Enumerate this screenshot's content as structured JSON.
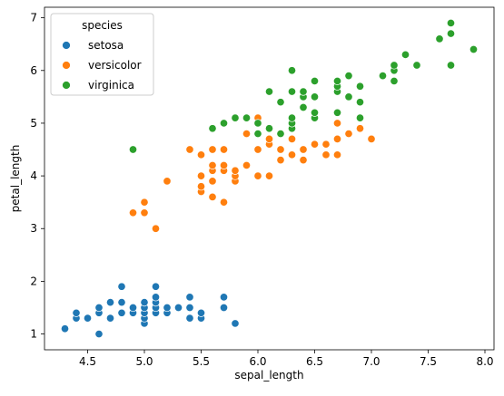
{
  "chart_data": {
    "type": "scatter",
    "title": "",
    "xlabel": "sepal_length",
    "ylabel": "petal_length",
    "xlim": [
      4.12,
      8.08
    ],
    "ylim": [
      0.7,
      7.2
    ],
    "x_ticks": [
      4.5,
      5.0,
      5.5,
      6.0,
      6.5,
      7.0,
      7.5,
      8.0
    ],
    "x_tick_labels": [
      "4.5",
      "5.0",
      "5.5",
      "6.0",
      "6.5",
      "7.0",
      "7.5",
      "8.0"
    ],
    "y_ticks": [
      1,
      2,
      3,
      4,
      5,
      6,
      7
    ],
    "y_tick_labels": [
      "1",
      "2",
      "3",
      "4",
      "5",
      "6",
      "7"
    ],
    "grid": false,
    "legend": {
      "title": "species",
      "placement": "top-left"
    },
    "series": [
      {
        "name": "setosa",
        "color": "#1f77b4",
        "points": [
          [
            4.3,
            1.1
          ],
          [
            4.4,
            1.3
          ],
          [
            4.4,
            1.4
          ],
          [
            4.5,
            1.3
          ],
          [
            4.6,
            1.0
          ],
          [
            4.6,
            1.4
          ],
          [
            4.6,
            1.5
          ],
          [
            4.7,
            1.3
          ],
          [
            4.7,
            1.6
          ],
          [
            4.8,
            1.4
          ],
          [
            4.8,
            1.6
          ],
          [
            4.8,
            1.9
          ],
          [
            4.9,
            1.4
          ],
          [
            4.9,
            1.5
          ],
          [
            5.0,
            1.2
          ],
          [
            5.0,
            1.3
          ],
          [
            5.0,
            1.4
          ],
          [
            5.0,
            1.5
          ],
          [
            5.0,
            1.6
          ],
          [
            5.1,
            1.4
          ],
          [
            5.1,
            1.5
          ],
          [
            5.1,
            1.6
          ],
          [
            5.1,
            1.7
          ],
          [
            5.1,
            1.9
          ],
          [
            5.2,
            1.4
          ],
          [
            5.2,
            1.5
          ],
          [
            5.3,
            1.5
          ],
          [
            5.4,
            1.3
          ],
          [
            5.4,
            1.5
          ],
          [
            5.4,
            1.7
          ],
          [
            5.5,
            1.3
          ],
          [
            5.5,
            1.4
          ],
          [
            5.7,
            1.5
          ],
          [
            5.7,
            1.7
          ],
          [
            5.8,
            1.2
          ]
        ]
      },
      {
        "name": "versicolor",
        "color": "#ff7f0e",
        "points": [
          [
            4.9,
            3.3
          ],
          [
            5.0,
            3.3
          ],
          [
            5.0,
            3.5
          ],
          [
            5.1,
            3.0
          ],
          [
            5.2,
            3.9
          ],
          [
            5.4,
            4.5
          ],
          [
            5.5,
            3.7
          ],
          [
            5.5,
            3.8
          ],
          [
            5.5,
            4.0
          ],
          [
            5.5,
            4.4
          ],
          [
            5.6,
            3.6
          ],
          [
            5.6,
            3.9
          ],
          [
            5.6,
            4.1
          ],
          [
            5.6,
            4.2
          ],
          [
            5.6,
            4.5
          ],
          [
            5.7,
            3.5
          ],
          [
            5.7,
            4.1
          ],
          [
            5.7,
            4.2
          ],
          [
            5.7,
            4.5
          ],
          [
            5.8,
            3.9
          ],
          [
            5.8,
            4.0
          ],
          [
            5.8,
            4.1
          ],
          [
            5.9,
            4.2
          ],
          [
            5.9,
            4.8
          ],
          [
            6.0,
            4.0
          ],
          [
            6.0,
            4.5
          ],
          [
            6.0,
            5.1
          ],
          [
            6.1,
            4.0
          ],
          [
            6.1,
            4.6
          ],
          [
            6.1,
            4.7
          ],
          [
            6.2,
            4.3
          ],
          [
            6.2,
            4.5
          ],
          [
            6.3,
            4.4
          ],
          [
            6.3,
            4.7
          ],
          [
            6.3,
            4.9
          ],
          [
            6.4,
            4.3
          ],
          [
            6.4,
            4.5
          ],
          [
            6.5,
            4.6
          ],
          [
            6.6,
            4.4
          ],
          [
            6.6,
            4.6
          ],
          [
            6.7,
            4.4
          ],
          [
            6.7,
            4.7
          ],
          [
            6.7,
            5.0
          ],
          [
            6.8,
            4.8
          ],
          [
            6.9,
            4.9
          ],
          [
            7.0,
            4.7
          ]
        ]
      },
      {
        "name": "virginica",
        "color": "#2ca02c",
        "points": [
          [
            4.9,
            4.5
          ],
          [
            5.6,
            4.9
          ],
          [
            5.7,
            5.0
          ],
          [
            5.8,
            5.1
          ],
          [
            5.9,
            5.1
          ],
          [
            6.0,
            4.8
          ],
          [
            6.0,
            5.0
          ],
          [
            6.1,
            4.9
          ],
          [
            6.1,
            5.6
          ],
          [
            6.2,
            4.8
          ],
          [
            6.2,
            5.4
          ],
          [
            6.3,
            4.9
          ],
          [
            6.3,
            5.0
          ],
          [
            6.3,
            5.1
          ],
          [
            6.3,
            5.6
          ],
          [
            6.3,
            6.0
          ],
          [
            6.4,
            5.3
          ],
          [
            6.4,
            5.5
          ],
          [
            6.4,
            5.6
          ],
          [
            6.5,
            5.1
          ],
          [
            6.5,
            5.2
          ],
          [
            6.5,
            5.5
          ],
          [
            6.5,
            5.8
          ],
          [
            6.7,
            5.2
          ],
          [
            6.7,
            5.6
          ],
          [
            6.7,
            5.7
          ],
          [
            6.7,
            5.8
          ],
          [
            6.8,
            5.5
          ],
          [
            6.8,
            5.9
          ],
          [
            6.9,
            5.1
          ],
          [
            6.9,
            5.4
          ],
          [
            6.9,
            5.7
          ],
          [
            7.1,
            5.9
          ],
          [
            7.2,
            5.8
          ],
          [
            7.2,
            6.0
          ],
          [
            7.2,
            6.1
          ],
          [
            7.3,
            6.3
          ],
          [
            7.4,
            6.1
          ],
          [
            7.6,
            6.6
          ],
          [
            7.7,
            6.1
          ],
          [
            7.7,
            6.7
          ],
          [
            7.7,
            6.9
          ],
          [
            7.9,
            6.4
          ]
        ]
      }
    ]
  }
}
